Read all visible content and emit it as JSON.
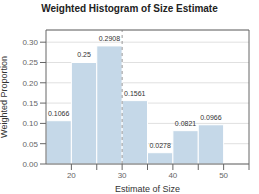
{
  "chart_data": {
    "type": "histogram",
    "title": "Weighted Histogram of Size Estimate",
    "x_label": "Estimate of Size",
    "y_label": "Weighted Proportion",
    "bins": [
      15,
      20,
      25,
      30,
      35,
      40,
      45,
      50
    ],
    "values": [
      0.1066,
      0.25,
      0.2908,
      0.1561,
      0.0278,
      0.0821,
      0.0966
    ],
    "color": "#c5d8e8",
    "data_labels": true,
    "xlim": [
      15,
      55
    ],
    "xticks": [
      20,
      {
        "value": 25,
        "label": ""
      },
      30,
      {
        "value": 35,
        "label": ""
      },
      40,
      {
        "value": 45,
        "label": ""
      },
      50,
      {
        "value": 55,
        "label": ""
      }
    ],
    "ylim": [
      0,
      0.33
    ],
    "yticks": [
      {
        "value": 0,
        "label": "0.00"
      },
      {
        "value": 0.05,
        "label": "0.05"
      },
      {
        "value": 0.1,
        "label": "0.10"
      },
      {
        "value": 0.15,
        "label": "0.15"
      },
      {
        "value": 0.2,
        "label": "0.20"
      },
      {
        "value": 0.25,
        "label": "0.25"
      },
      {
        "value": 0.3,
        "label": "0.30"
      }
    ],
    "grid": true,
    "reference_x": 30
  }
}
